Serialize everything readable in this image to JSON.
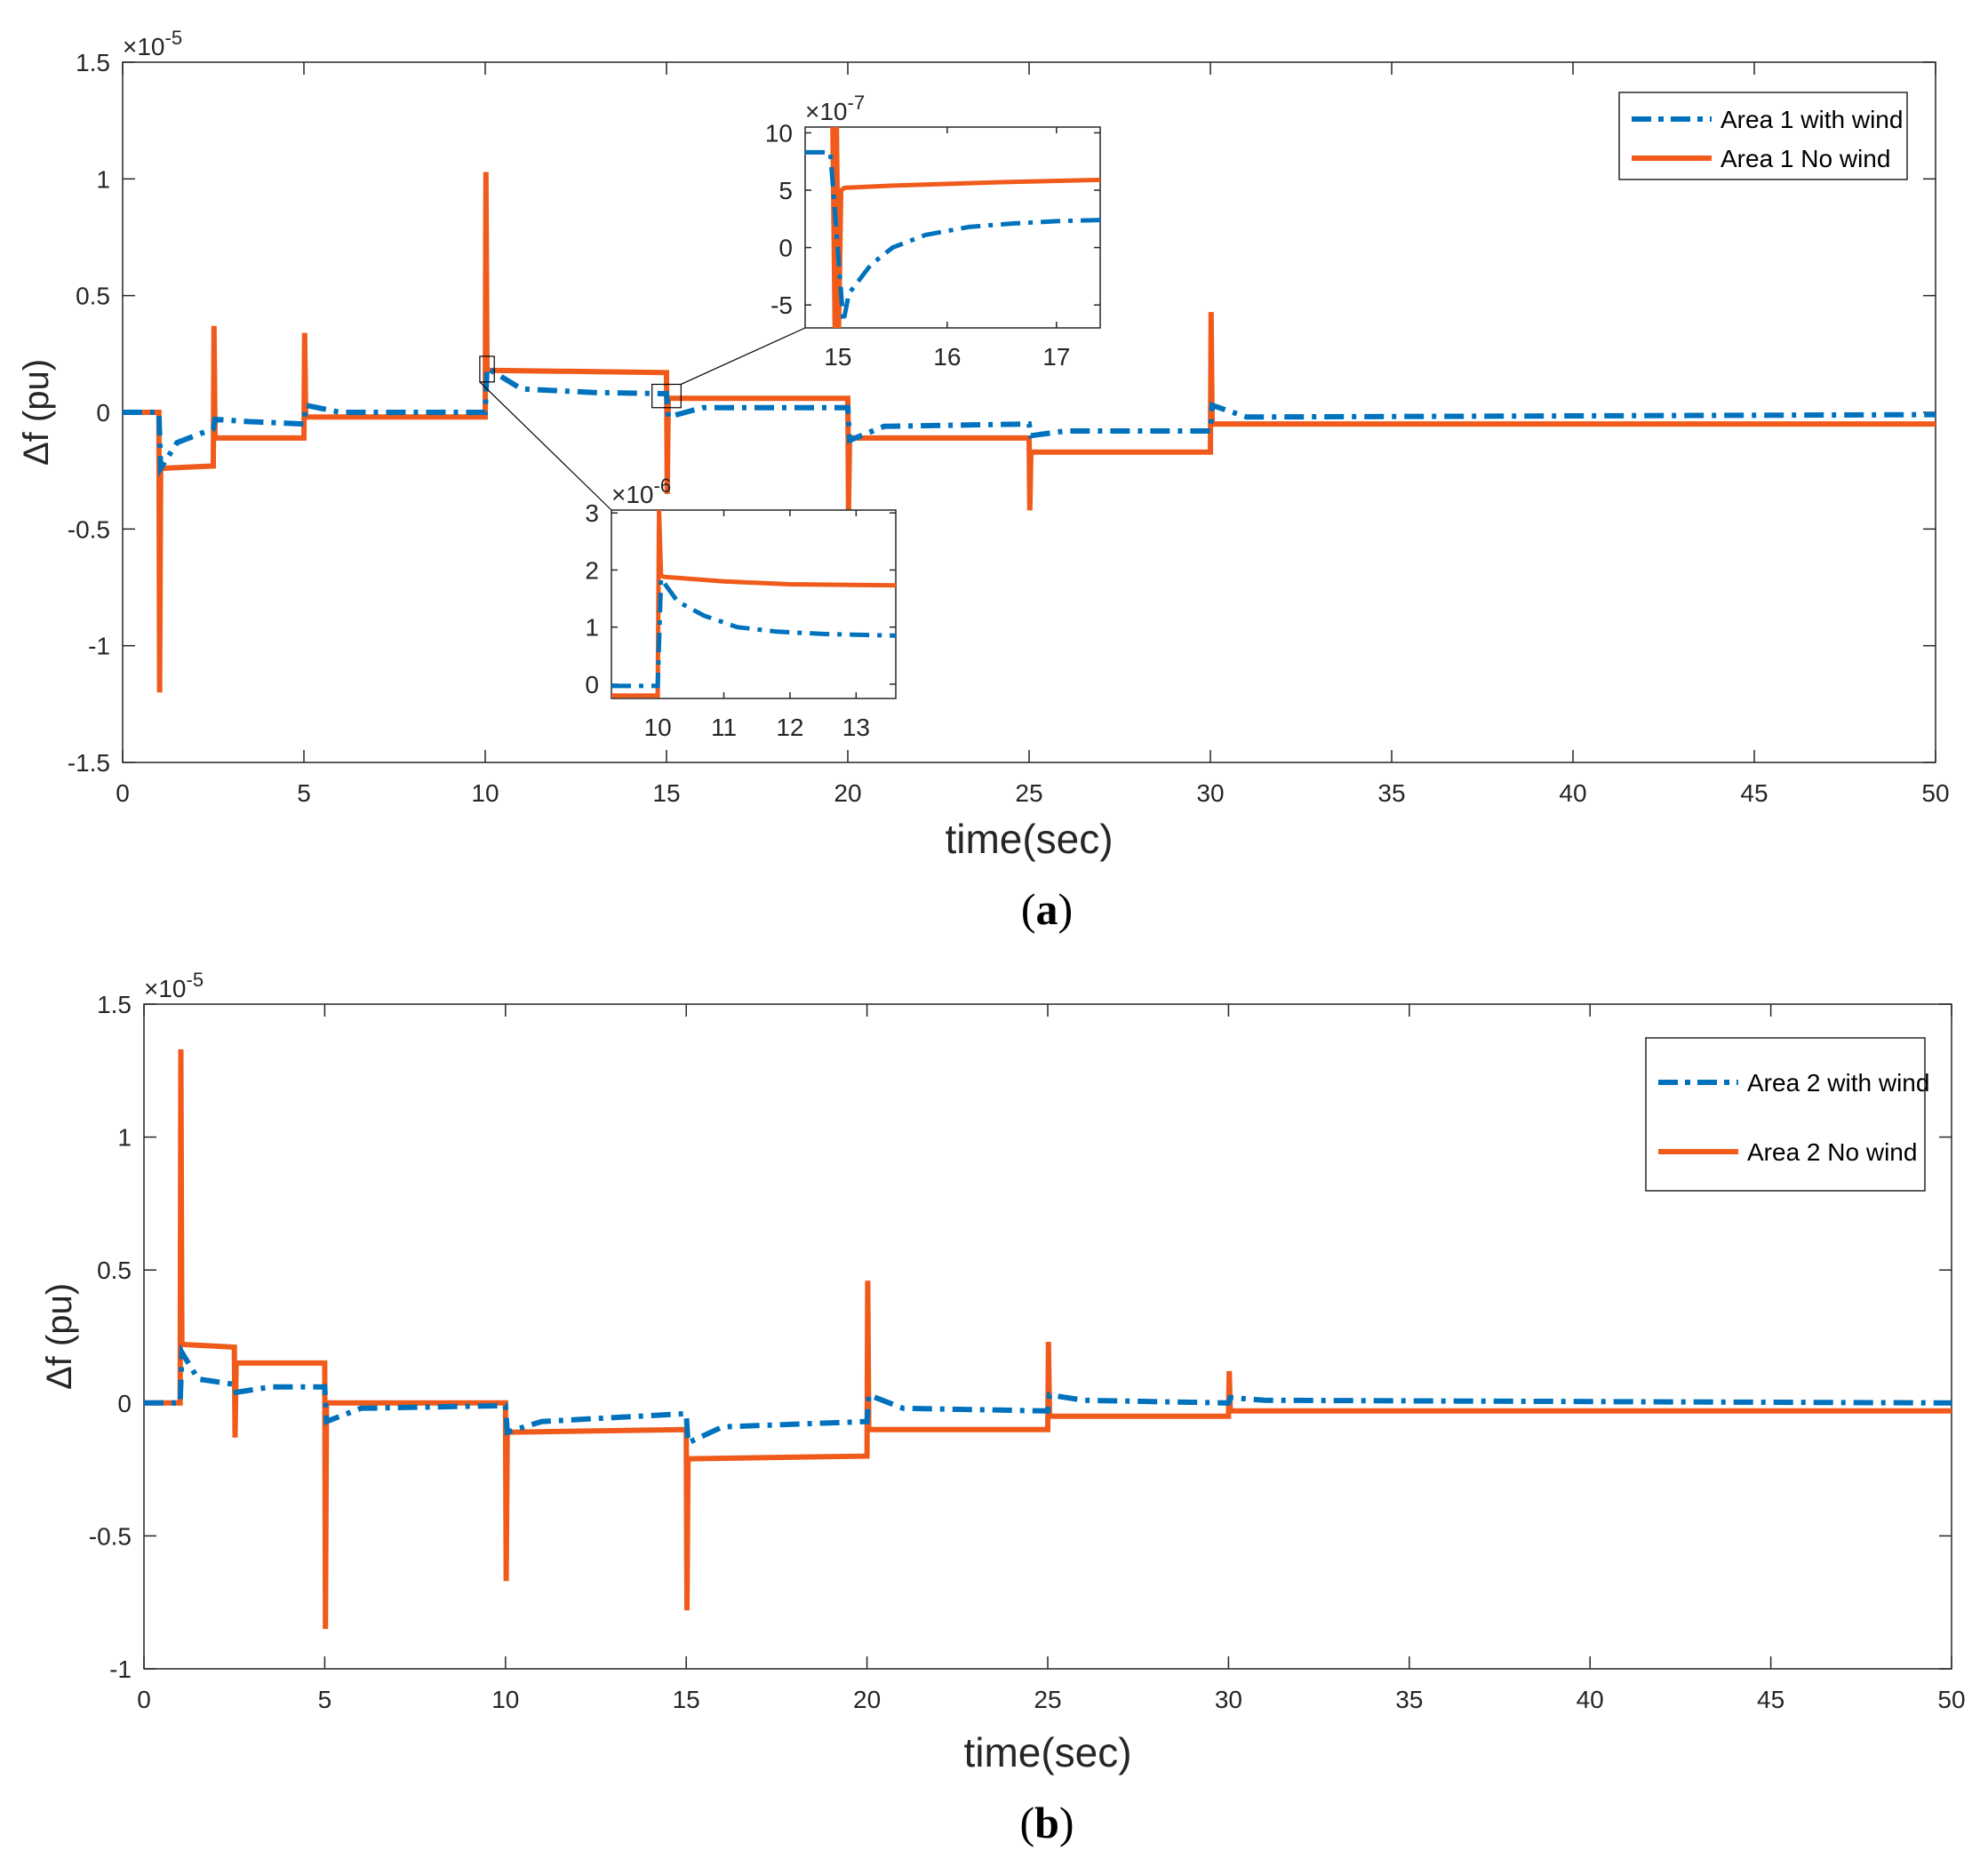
{
  "colors": {
    "with_wind": "#0072BD",
    "no_wind": "#F05A1A",
    "axis": "#262626"
  },
  "chart_data": [
    {
      "type": "line",
      "panel": "a",
      "caption_open": "(",
      "caption_letter": "a",
      "caption_close": ")",
      "xlabel": "time(sec)",
      "ylabel": "Δf (pu)",
      "exponent_base": "×10",
      "exponent_power": "-5",
      "xlim": [
        0,
        50
      ],
      "ylim": [
        -1.5,
        1.5
      ],
      "xticks": [
        0,
        5,
        10,
        15,
        20,
        25,
        30,
        35,
        40,
        45,
        50
      ],
      "yticks": [
        1.5,
        1,
        0.5,
        0,
        -0.5,
        -1,
        -1.5
      ],
      "legend": [
        "Area 1 with wind",
        "Area 1 No wind"
      ],
      "series": [
        {
          "name": "Area 1 with wind",
          "style": "dashdot",
          "x": [
            0,
            1.0,
            1.05,
            1.5,
            2.5,
            2.55,
            3.5,
            5,
            5.05,
            6,
            10,
            10.05,
            11,
            13,
            15,
            15.05,
            16,
            20,
            20.05,
            21,
            25,
            25.05,
            26,
            30,
            30.05,
            31,
            50
          ],
          "y": [
            0,
            0,
            -0.24,
            -0.13,
            -0.07,
            -0.03,
            -0.04,
            -0.05,
            0.03,
            0.0,
            0.0,
            0.19,
            0.1,
            0.085,
            0.08,
            -0.02,
            0.02,
            0.02,
            -0.12,
            -0.06,
            -0.05,
            -0.1,
            -0.08,
            -0.08,
            0.03,
            -0.02,
            -0.01
          ]
        },
        {
          "name": "Area 1 No wind",
          "style": "solid",
          "x": [
            0,
            1.0,
            1.02,
            1.05,
            1.1,
            2.5,
            2.52,
            2.55,
            2.6,
            5,
            5.02,
            5.05,
            5.1,
            10,
            10.02,
            10.05,
            10.1,
            15,
            15.02,
            15.05,
            15.1,
            20,
            20.02,
            20.05,
            20.1,
            25,
            25.02,
            25.05,
            25.1,
            30,
            30.02,
            30.05,
            30.1,
            50
          ],
          "y": [
            0,
            0,
            -1.2,
            -0.24,
            -0.24,
            -0.23,
            0.37,
            -0.11,
            -0.11,
            -0.11,
            0.34,
            -0.02,
            -0.02,
            -0.02,
            1.03,
            0.18,
            0.18,
            0.17,
            -0.35,
            0.06,
            0.06,
            0.06,
            -0.42,
            -0.11,
            -0.11,
            -0.11,
            -0.42,
            -0.17,
            -0.17,
            -0.17,
            0.43,
            -0.05,
            -0.05,
            -0.05
          ]
        }
      ],
      "insets": [
        {
          "exponent_base": "×10",
          "exponent_power": "-7",
          "xlim": [
            14.7,
            17.4
          ],
          "ylim": [
            -7,
            10.5
          ],
          "xticks": [
            15,
            16,
            17
          ],
          "yticks": [
            10,
            5,
            0,
            -5
          ],
          "zoom_box": {
            "x0": 14.6,
            "x1": 15.4,
            "y0": 0.02,
            "y1": 0.12
          },
          "series": [
            {
              "name": "Area 1 with wind",
              "style": "dashdot",
              "x": [
                14.7,
                14.93,
                15.05,
                15.1,
                15.3,
                15.5,
                15.8,
                16.2,
                16.6,
                17.0,
                17.4
              ],
              "y": [
                8.3,
                8.3,
                -6.5,
                -4,
                -1.5,
                0,
                1.1,
                1.8,
                2.1,
                2.3,
                2.4
              ]
            },
            {
              "name": "Area 1 No wind",
              "style": "solid",
              "x": [
                14.95,
                14.97,
                14.99,
                15.01,
                15.03,
                15.06,
                15.5,
                16.5,
                17.4
              ],
              "y": [
                10.5,
                -7,
                10.5,
                -7,
                5.0,
                5.2,
                5.4,
                5.7,
                5.9
              ]
            }
          ]
        },
        {
          "exponent_base": "×10",
          "exponent_power": "-6",
          "xlim": [
            9.3,
            13.6
          ],
          "ylim": [
            -0.25,
            3.05
          ],
          "xticks": [
            10,
            11,
            12,
            13
          ],
          "yticks": [
            3,
            2,
            1,
            0
          ],
          "zoom_box": {
            "x0": 9.85,
            "x1": 10.25,
            "y0": 0.13,
            "y1": 0.24
          },
          "series": [
            {
              "name": "Area 1 with wind",
              "style": "dashdot",
              "x": [
                9.3,
                10.0,
                10.05,
                10.3,
                10.7,
                11.2,
                11.8,
                12.5,
                13.6
              ],
              "y": [
                -0.03,
                -0.03,
                1.85,
                1.45,
                1.2,
                1.0,
                0.92,
                0.88,
                0.85
              ]
            },
            {
              "name": "Area 1 No wind",
              "style": "solid",
              "x": [
                9.3,
                10.0,
                10.02,
                10.05,
                10.1,
                11,
                12,
                13.6
              ],
              "y": [
                -0.2,
                -0.2,
                3.05,
                1.9,
                1.88,
                1.8,
                1.75,
                1.73
              ]
            }
          ]
        }
      ]
    },
    {
      "type": "line",
      "panel": "b",
      "caption_open": "(",
      "caption_letter": "b",
      "caption_close": ")",
      "xlabel": "time(sec)",
      "ylabel": "Δf (pu)",
      "exponent_base": "×10",
      "exponent_power": "-5",
      "xlim": [
        0,
        50
      ],
      "ylim": [
        -1,
        1.5
      ],
      "xticks": [
        0,
        5,
        10,
        15,
        20,
        25,
        30,
        35,
        40,
        45,
        50
      ],
      "yticks": [
        1.5,
        1,
        0.5,
        0,
        -0.5,
        -1
      ],
      "legend": [
        "Area 2 with wind",
        "Area 2 No wind"
      ],
      "series": [
        {
          "name": "Area 2 with wind",
          "style": "dashdot",
          "x": [
            0,
            1.0,
            1.05,
            1.5,
            2.5,
            2.55,
            3.5,
            5,
            5.05,
            6,
            10,
            10.05,
            11,
            15,
            15.05,
            16,
            20,
            20.05,
            21,
            25,
            25.05,
            26,
            30,
            30.05,
            31,
            50
          ],
          "y": [
            0,
            0,
            0.19,
            0.09,
            0.07,
            0.04,
            0.06,
            0.06,
            -0.07,
            -0.02,
            -0.01,
            -0.11,
            -0.07,
            -0.04,
            -0.15,
            -0.09,
            -0.07,
            0.03,
            -0.02,
            -0.03,
            0.03,
            0.01,
            0.0,
            0.02,
            0.01,
            0.0
          ]
        },
        {
          "name": "Area 2 No wind",
          "style": "solid",
          "x": [
            0,
            1.0,
            1.02,
            1.05,
            1.1,
            2.5,
            2.52,
            2.55,
            2.6,
            5,
            5.02,
            5.05,
            5.1,
            10,
            10.02,
            10.05,
            10.1,
            15,
            15.02,
            15.05,
            15.1,
            20,
            20.02,
            20.05,
            20.1,
            25,
            25.02,
            25.05,
            25.1,
            30,
            30.02,
            30.05,
            30.1,
            50
          ],
          "y": [
            0,
            0,
            1.33,
            0.22,
            0.22,
            0.21,
            -0.13,
            0.15,
            0.15,
            0.15,
            -0.85,
            0.0,
            0.0,
            0.0,
            -0.67,
            -0.11,
            -0.11,
            -0.1,
            -0.78,
            -0.21,
            -0.21,
            -0.2,
            0.46,
            -0.1,
            -0.1,
            -0.1,
            0.23,
            -0.05,
            -0.05,
            -0.05,
            0.12,
            -0.03,
            -0.03,
            -0.03
          ]
        }
      ]
    }
  ]
}
